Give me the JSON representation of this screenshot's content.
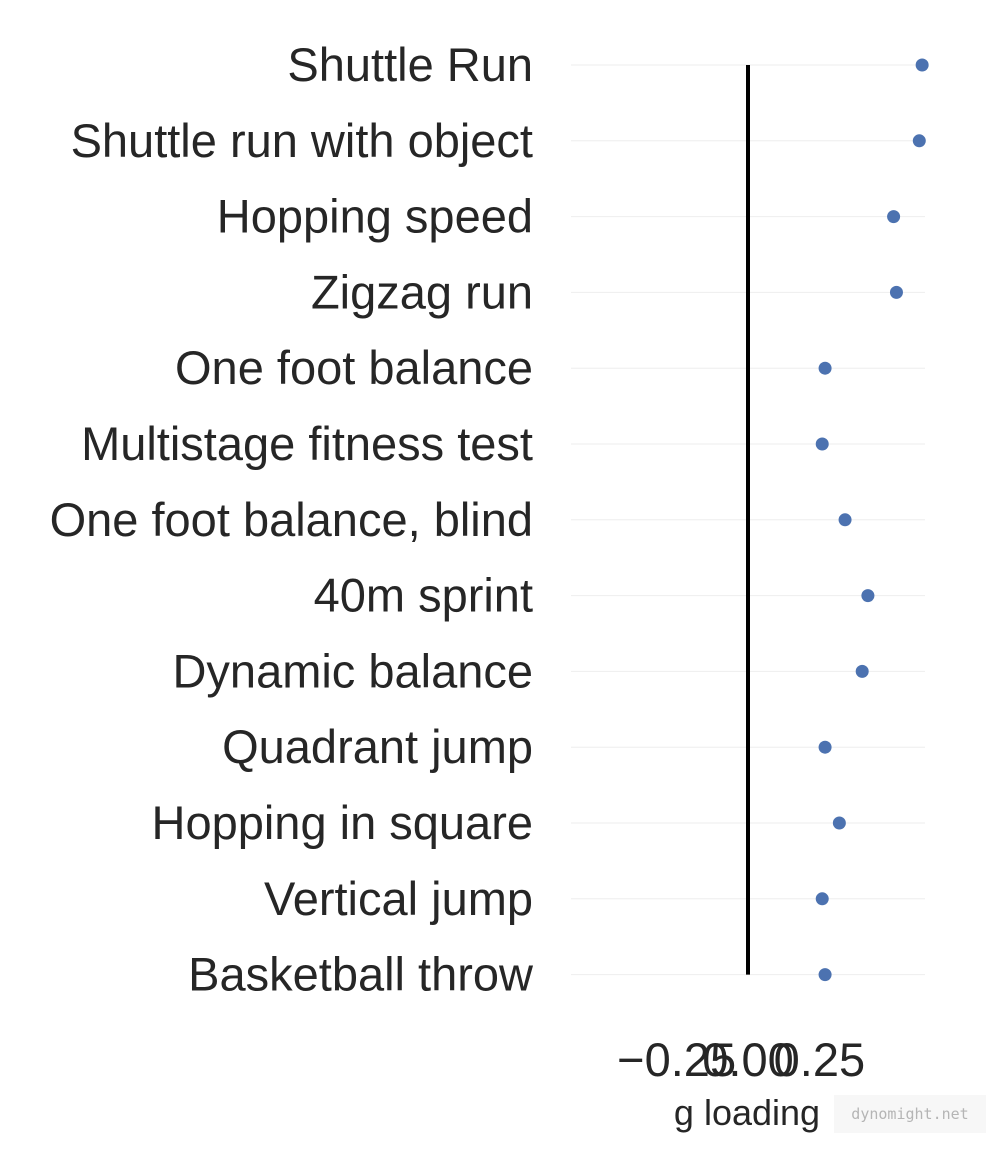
{
  "chart_data": {
    "type": "scatter",
    "categories": [
      "Shuttle Run",
      "Shuttle run with object",
      "Hopping speed",
      "Zigzag run",
      "One foot balance",
      "Multistage fitness test",
      "One foot balance, blind",
      "40m sprint",
      "Dynamic balance",
      "Quadrant jump",
      "Hopping in square",
      "Vertical jump",
      "Basketball throw"
    ],
    "values": [
      0.61,
      0.6,
      0.51,
      0.52,
      0.27,
      0.26,
      0.34,
      0.42,
      0.4,
      0.27,
      0.32,
      0.26,
      0.27
    ],
    "xlabel": "g loading",
    "ylabel": "",
    "xlim": [
      -0.62,
      0.62
    ],
    "xticks": [
      -0.25,
      0.0,
      0.25
    ],
    "xtick_labels": [
      "−0.25",
      "0.00",
      "0.25"
    ],
    "reference_line_x": 0.0,
    "grid": "horizontal",
    "colors": {
      "marker": "#4c72b0",
      "reference_line": "#000000",
      "grid": "#eeeeee",
      "text": "#262626"
    }
  },
  "watermark": "dynomight.net"
}
